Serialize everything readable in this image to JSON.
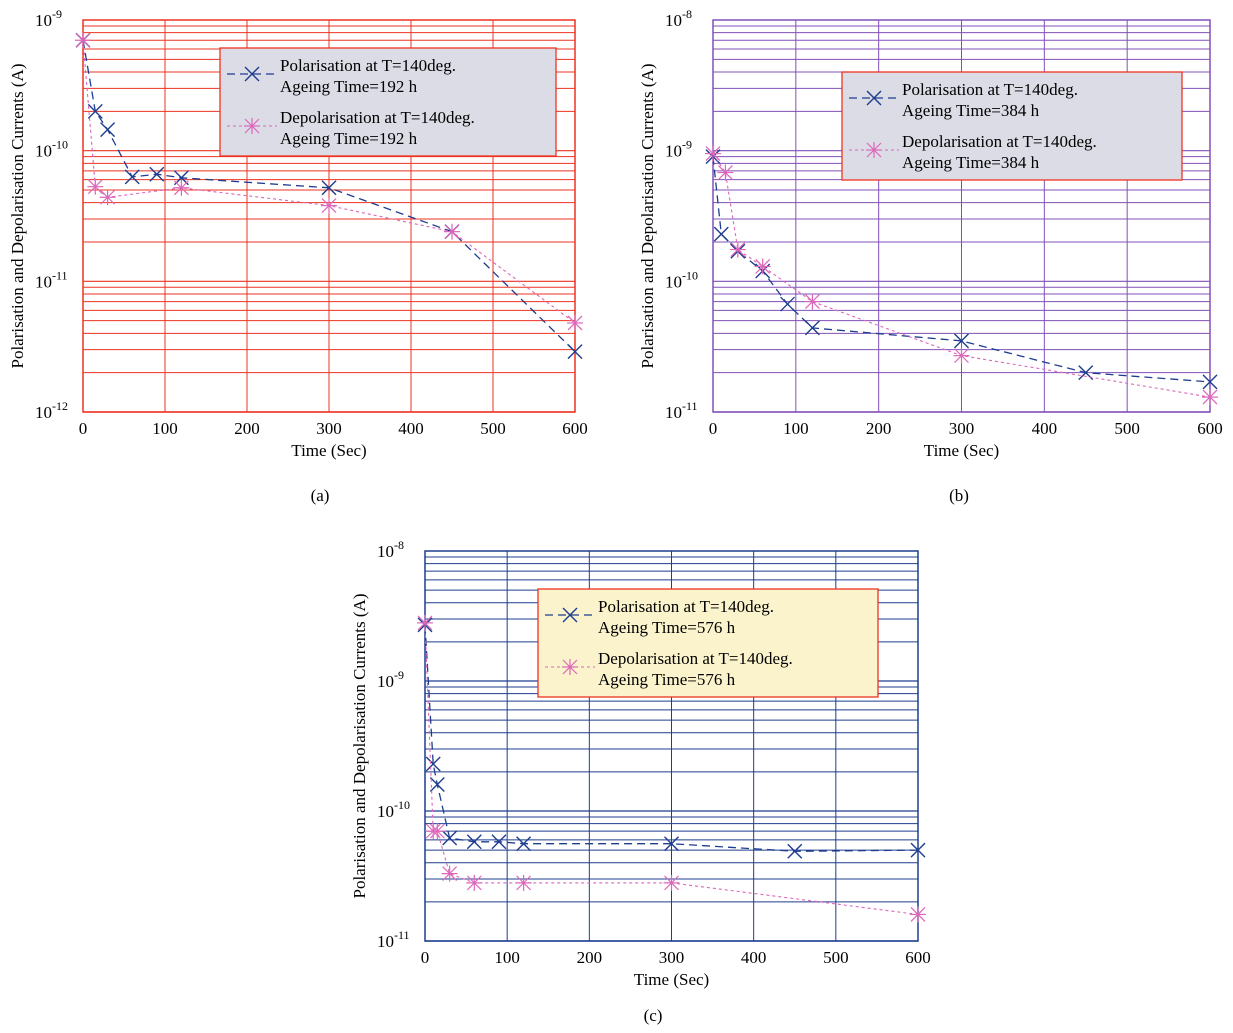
{
  "chart_data": [
    {
      "type": "line",
      "panel_label": "(a)",
      "xlabel": "Time (Sec)",
      "ylabel": "Polarisation and Depolarisation Currents (A)",
      "xlim": [
        0,
        600
      ],
      "ylim": [
        1e-12,
        1e-09
      ],
      "yscale": "log",
      "xticks": [
        "0",
        "100",
        "200",
        "300",
        "400",
        "500",
        "600"
      ],
      "yticks": [
        {
          "base": "10",
          "exp": "-12"
        },
        {
          "base": "10",
          "exp": "-11"
        },
        {
          "base": "10",
          "exp": "-10"
        },
        {
          "base": "10",
          "exp": "-9"
        }
      ],
      "grid": true,
      "grid_color": "#ee3322",
      "legend_position": "top-right",
      "legend_bg": "#dcdce6",
      "legend_border": "#ee3322",
      "series": [
        {
          "name": "Polarisation at T=140deg.",
          "name2": "Ageing Time=192 h",
          "color": "#1f3d8f",
          "marker": "x",
          "x": [
            0,
            15,
            30,
            60,
            90,
            120,
            300,
            450,
            600
          ],
          "y": [
            7e-10,
            2e-10,
            1.45e-10,
            6.3e-11,
            6.6e-11,
            6.2e-11,
            5.2e-11,
            2.4e-11,
            2.9e-12
          ]
        },
        {
          "name": "Depolarisation at T=140deg.",
          "name2": "Ageing Time=192 h",
          "color": "#dd66bb",
          "marker": "asterisk",
          "x": [
            0,
            15,
            30,
            120,
            300,
            450,
            600
          ],
          "y": [
            7e-10,
            5.3e-11,
            4.4e-11,
            5.2e-11,
            3.8e-11,
            2.4e-11,
            4.8e-12
          ]
        }
      ]
    },
    {
      "type": "line",
      "panel_label": "(b)",
      "xlabel": "Time (Sec)",
      "ylabel": "Polarisation and Depolarisation Currents (A)",
      "xlim": [
        0,
        600
      ],
      "ylim": [
        1e-11,
        1e-08
      ],
      "yscale": "log",
      "xticks": [
        "0",
        "100",
        "200",
        "300",
        "400",
        "500",
        "600"
      ],
      "yticks": [
        {
          "base": "10",
          "exp": "-11"
        },
        {
          "base": "10",
          "exp": "-10"
        },
        {
          "base": "10",
          "exp": "-9"
        },
        {
          "base": "10",
          "exp": "-8"
        }
      ],
      "grid": true,
      "grid_color": "#8050b8",
      "legend_position": "top-right",
      "legend_bg": "#dcdce6",
      "legend_border": "#ee3322",
      "series": [
        {
          "name": "Polarisation at T=140deg.",
          "name2": "Ageing Time=384 h",
          "color": "#1f3d8f",
          "marker": "x",
          "x": [
            0,
            10,
            30,
            60,
            90,
            120,
            300,
            450,
            600
          ],
          "y": [
            9e-10,
            2.3e-10,
            1.7e-10,
            1.2e-10,
            6.7e-11,
            4.4e-11,
            3.5e-11,
            2e-11,
            1.7e-11
          ]
        },
        {
          "name": "Depolarisation at T=140deg.",
          "name2": "Ageing Time=384 h",
          "color": "#dd66bb",
          "marker": "asterisk",
          "x": [
            0,
            15,
            30,
            60,
            120,
            300,
            600
          ],
          "y": [
            9.5e-10,
            6.8e-10,
            1.75e-10,
            1.3e-10,
            7e-11,
            2.7e-11,
            1.3e-11
          ]
        }
      ]
    },
    {
      "type": "line",
      "panel_label": "(c)",
      "xlabel": "Time (Sec)",
      "ylabel": "Polarisation and Depolarisation Currents (A)",
      "xlim": [
        0,
        600
      ],
      "ylim": [
        1e-11,
        1e-08
      ],
      "yscale": "log",
      "xticks": [
        "0",
        "100",
        "200",
        "300",
        "400",
        "500",
        "600"
      ],
      "yticks": [
        {
          "base": "10",
          "exp": "-11"
        },
        {
          "base": "10",
          "exp": "-10"
        },
        {
          "base": "10",
          "exp": "-9"
        },
        {
          "base": "10",
          "exp": "-8"
        }
      ],
      "grid": true,
      "grid_color": "#1f3d8f",
      "legend_position": "top-right",
      "legend_bg": "#fbf3cc",
      "legend_border": "#ee3322",
      "series": [
        {
          "name": "Polarisation at T=140deg.",
          "name2": "Ageing Time=576 h",
          "color": "#1f3d8f",
          "marker": "x",
          "x": [
            0,
            10,
            15,
            30,
            60,
            90,
            120,
            300,
            450,
            600
          ],
          "y": [
            2.7e-09,
            2.3e-10,
            1.6e-10,
            6.2e-11,
            5.8e-11,
            5.8e-11,
            5.6e-11,
            5.6e-11,
            4.9e-11,
            5e-11
          ]
        },
        {
          "name": "Depolarisation at T=140deg.",
          "name2": "Ageing Time=576 h",
          "color": "#dd66bb",
          "marker": "asterisk",
          "x": [
            0,
            10,
            15,
            30,
            60,
            120,
            300,
            600
          ],
          "y": [
            2.8e-09,
            7e-11,
            7e-11,
            3.3e-11,
            2.8e-11,
            2.8e-11,
            2.8e-11,
            1.6e-11
          ]
        }
      ]
    }
  ]
}
